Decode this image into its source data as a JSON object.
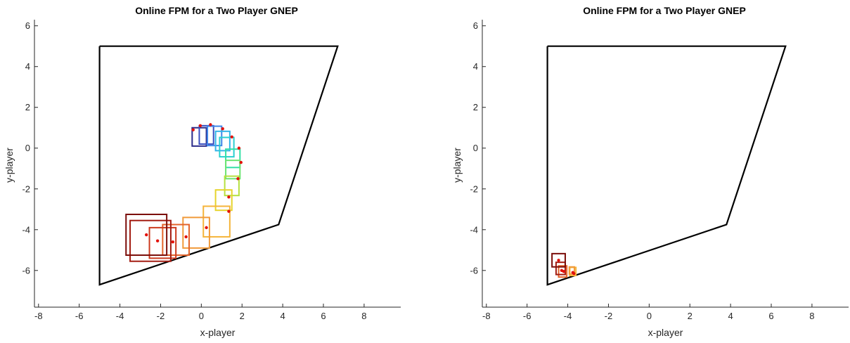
{
  "chart_data": [
    {
      "type": "line",
      "title": "Online FPM for a Two Player GNEP",
      "xlabel": "x-player",
      "ylabel": "y-player",
      "xlim": [
        -8.2,
        9.8
      ],
      "ylim": [
        -7.8,
        6.3
      ],
      "xticks": [
        "-8",
        "-6",
        "-4",
        "-2",
        "0",
        "2",
        "4",
        "6",
        "8"
      ],
      "yticks": [
        "-6",
        "-4",
        "-2",
        "0",
        "2",
        "4",
        "6"
      ],
      "grid": false,
      "polygon": [
        [
          -5,
          5
        ],
        [
          6.7,
          5
        ],
        [
          3.8,
          -3.75
        ],
        [
          -5,
          -6.7
        ],
        [
          -5,
          5
        ]
      ],
      "boxes": [
        {
          "cx": -0.1,
          "cy": 0.55,
          "w": 0.7,
          "h": 0.9,
          "color": "#2b2b8a",
          "point": [
            -0.4,
            0.9
          ]
        },
        {
          "cx": 0.25,
          "cy": 0.65,
          "w": 0.7,
          "h": 0.9,
          "color": "#3a4fc0",
          "point": [
            -0.05,
            1.1
          ]
        },
        {
          "cx": 0.65,
          "cy": 0.6,
          "w": 0.7,
          "h": 0.95,
          "color": "#3f86e8",
          "point": [
            0.45,
            1.15
          ]
        },
        {
          "cx": 1.05,
          "cy": 0.35,
          "w": 0.7,
          "h": 0.95,
          "color": "#33b4e8",
          "point": [
            1.05,
            0.95
          ]
        },
        {
          "cx": 1.25,
          "cy": 0.05,
          "w": 0.7,
          "h": 0.95,
          "color": "#2ad0d0",
          "point": [
            1.5,
            0.55
          ]
        },
        {
          "cx": 1.55,
          "cy": -0.5,
          "w": 0.7,
          "h": 0.9,
          "color": "#33dfa6",
          "point": [
            1.85,
            0.0
          ]
        },
        {
          "cx": 1.55,
          "cy": -1.05,
          "w": 0.7,
          "h": 0.9,
          "color": "#6ee472",
          "point": [
            1.95,
            -0.7
          ]
        },
        {
          "cx": 1.5,
          "cy": -1.85,
          "w": 0.7,
          "h": 0.95,
          "color": "#b6e040",
          "point": [
            1.8,
            -1.5
          ]
        },
        {
          "cx": 1.1,
          "cy": -2.55,
          "w": 0.8,
          "h": 1.0,
          "color": "#e6d42c",
          "point": [
            1.35,
            -2.4
          ]
        },
        {
          "cx": 0.75,
          "cy": -3.6,
          "w": 1.3,
          "h": 1.5,
          "color": "#f5b43a",
          "point": [
            1.35,
            -3.1
          ]
        },
        {
          "cx": -0.25,
          "cy": -4.15,
          "w": 1.3,
          "h": 1.5,
          "color": "#f19a3a",
          "point": [
            0.25,
            -3.9
          ]
        },
        {
          "cx": -1.25,
          "cy": -4.5,
          "w": 1.3,
          "h": 1.5,
          "color": "#e4642a",
          "point": [
            -0.75,
            -4.35
          ]
        },
        {
          "cx": -1.9,
          "cy": -4.65,
          "w": 1.3,
          "h": 1.5,
          "color": "#cc3a1e",
          "point": [
            -1.4,
            -4.6
          ]
        },
        {
          "cx": -2.5,
          "cy": -4.55,
          "w": 2.0,
          "h": 2.0,
          "color": "#a31c12",
          "point": [
            -2.15,
            -4.55
          ]
        },
        {
          "cx": -2.7,
          "cy": -4.25,
          "w": 2.0,
          "h": 2.0,
          "color": "#7a0c08",
          "point": [
            -2.7,
            -4.25
          ]
        }
      ]
    },
    {
      "type": "line",
      "title": "Online FPM for a Two Player GNEP",
      "xlabel": "x-player",
      "ylabel": "y-player",
      "xlim": [
        -8.2,
        9.8
      ],
      "ylim": [
        -7.8,
        6.3
      ],
      "xticks": [
        "-8",
        "-6",
        "-4",
        "-2",
        "0",
        "2",
        "4",
        "6",
        "8"
      ],
      "yticks": [
        "-6",
        "-4",
        "-2",
        "0",
        "2",
        "4",
        "6"
      ],
      "grid": false,
      "polygon": [
        [
          -5,
          5
        ],
        [
          6.7,
          5
        ],
        [
          3.8,
          -3.75
        ],
        [
          -5,
          -6.7
        ],
        [
          -5,
          5
        ]
      ],
      "boxes": [
        {
          "cx": -3.75,
          "cy": -6.05,
          "w": 0.3,
          "h": 0.4,
          "color": "#f5b43a",
          "point": [
            -3.7,
            -6.15
          ]
        },
        {
          "cx": -3.8,
          "cy": -6.0,
          "w": 0.25,
          "h": 0.35,
          "color": "#f19a3a",
          "point": [
            -3.75,
            -6.1
          ]
        },
        {
          "cx": -4.25,
          "cy": -6.05,
          "w": 0.4,
          "h": 0.55,
          "color": "#e4642a",
          "point": [
            -4.2,
            -6.05
          ]
        },
        {
          "cx": -4.35,
          "cy": -5.9,
          "w": 0.45,
          "h": 0.6,
          "color": "#a31c12",
          "point": [
            -4.3,
            -6.0
          ]
        },
        {
          "cx": -4.45,
          "cy": -5.5,
          "w": 0.65,
          "h": 0.65,
          "color": "#7a0c08",
          "point": [
            -4.45,
            -5.5
          ]
        }
      ]
    }
  ]
}
